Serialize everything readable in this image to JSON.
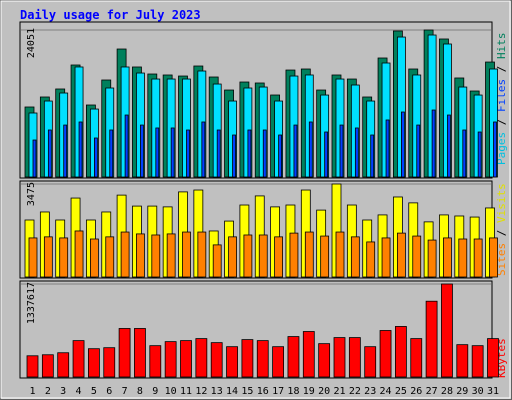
{
  "chart_data": [
    {
      "type": "bar",
      "title": "Daily usage for July 2023",
      "ylim": [
        0,
        24051
      ],
      "yticks": [
        24051
      ],
      "series": [
        {
          "name": "Hits",
          "color": "#00805c",
          "values": [
            11453,
            13090,
            14400,
            18325,
            11780,
            15870,
            20940,
            18000,
            16850,
            16690,
            16520,
            18160,
            16360,
            14230,
            15540,
            15380,
            13415,
            17500,
            17670,
            14230,
            16690,
            16030,
            13090,
            19470,
            23890,
            17670,
            24051,
            22580,
            16200,
            14070,
            18810
          ]
        },
        {
          "name": "Pages",
          "color": "#00e0ff",
          "values": [
            10470,
            12430,
            13740,
            18000,
            11120,
            14560,
            18000,
            17010,
            16030,
            16030,
            16030,
            17340,
            15210,
            12430,
            14560,
            14720,
            12430,
            16520,
            16690,
            13410,
            16030,
            15050,
            12430,
            18650,
            22900,
            16690,
            23230,
            21760,
            14720,
            13410,
            17670
          ]
        },
        {
          "name": "Files",
          "color": "#0040ff",
          "values": [
            6050,
            7690,
            8500,
            9000,
            6380,
            7690,
            10140,
            8500,
            8020,
            8020,
            7690,
            9000,
            7690,
            6870,
            7690,
            7690,
            6870,
            8500,
            9000,
            7360,
            8500,
            8020,
            6870,
            9330,
            10630,
            8500,
            10960,
            10140,
            7690,
            7360,
            9000
          ]
        }
      ]
    },
    {
      "type": "bar",
      "ylim": [
        0,
        3475
      ],
      "yticks": [
        3475
      ],
      "series": [
        {
          "name": "Visits",
          "color": "#ffff00",
          "values": [
            2130,
            2430,
            2130,
            2950,
            2130,
            2430,
            3060,
            2650,
            2650,
            2620,
            3180,
            3250,
            1720,
            2090,
            2690,
            3030,
            2620,
            2690,
            3250,
            2500,
            3475,
            2690,
            2130,
            2320,
            2990,
            2770,
            2060,
            2320,
            2280,
            2240,
            2580
          ]
        },
        {
          "name": "Sites",
          "color": "#ff8000",
          "values": [
            1460,
            1500,
            1460,
            1720,
            1420,
            1500,
            1680,
            1610,
            1570,
            1610,
            1680,
            1680,
            1200,
            1500,
            1570,
            1570,
            1500,
            1640,
            1680,
            1530,
            1680,
            1500,
            1310,
            1460,
            1640,
            1530,
            1380,
            1460,
            1420,
            1420,
            1460
          ]
        }
      ]
    },
    {
      "type": "bar",
      "ylim": [
        0,
        1337617
      ],
      "yticks": [
        1337617
      ],
      "categories": [
        "1",
        "2",
        "3",
        "4",
        "5",
        "6",
        "7",
        "8",
        "9",
        "10",
        "11",
        "12",
        "13",
        "14",
        "15",
        "16",
        "17",
        "18",
        "19",
        "20",
        "21",
        "22",
        "23",
        "24",
        "25",
        "26",
        "27",
        "28",
        "29",
        "30",
        "31"
      ],
      "label_color": "#0000ff",
      "weekend_label_color": "#008040",
      "weekend_categories": [
        "1",
        "2",
        "8",
        "9",
        "15",
        "16",
        "22",
        "23",
        "29",
        "30"
      ],
      "series": [
        {
          "name": "KBytes",
          "color": "#ff0000",
          "values": [
            305300,
            319900,
            349000,
            523400,
            407100,
            421600,
            697900,
            697900,
            450700,
            508900,
            523400,
            552500,
            494300,
            436200,
            537900,
            523400,
            436200,
            581600,
            654300,
            479800,
            567000,
            567000,
            436200,
            668800,
            727000,
            552500,
            1090000,
            1337617,
            465200,
            450700,
            552500
          ]
        }
      ]
    }
  ]
}
